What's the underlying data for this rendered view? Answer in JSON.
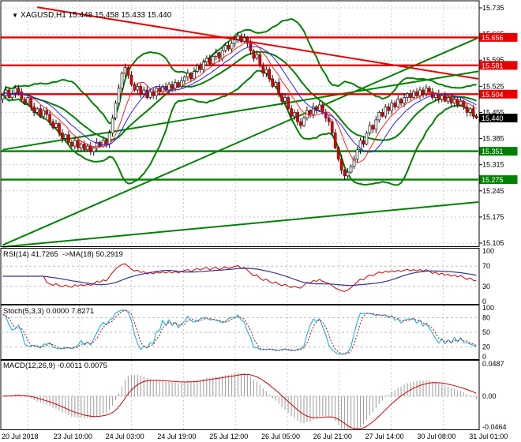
{
  "window": {
    "dropdown_icon": "▼",
    "title": "XAGUSD,H1",
    "ohlc": "15.448 15.458 15.433 15.440"
  },
  "colors": {
    "resistance": "#e80000",
    "support": "#008000",
    "current": "#000000",
    "bull": "#ffffff",
    "bear": "#dd0000",
    "candle_border": "#111111",
    "grid": "#c9c9c9",
    "band": "#008000",
    "ma_fast": "#ff2020",
    "ma_slow": "#2020ff",
    "rsi_main": "#cc0000",
    "rsi_ma": "#333399",
    "stoch_k": "#00b0d8",
    "stoch_d": "#cc0000",
    "macd_hist": "#9a9a9a",
    "macd_signal": "#cc0000",
    "axis_text": "#000000"
  },
  "chart_data": {
    "type": "candlestick",
    "title": "XAGUSD,H1",
    "ohlc_display": {
      "open": "15.448",
      "high": "15.458",
      "low": "15.433",
      "close": "15.440"
    },
    "price_axis": {
      "max": 15.735,
      "min": 15.105,
      "ticks": [
        15.735,
        15.665,
        15.595,
        15.525,
        15.455,
        15.385,
        15.315,
        15.245,
        15.175,
        15.105
      ]
    },
    "time_axis": {
      "labels": [
        "20 Jul 2018",
        "23 Jul 10:00",
        "24 Jul 03:00",
        "24 Jul 19:00",
        "25 Jul 12:00",
        "26 Jul 05:00",
        "26 Jul 21:00",
        "27 Jul 14:00",
        "30 Jul 08:00",
        "31 Jul 01:00"
      ]
    },
    "series": {
      "closes": [
        15.5,
        15.515,
        15.495,
        15.505,
        15.52,
        15.51,
        15.49,
        15.48,
        15.495,
        15.47,
        15.455,
        15.465,
        15.445,
        15.46,
        15.45,
        15.43,
        15.415,
        15.425,
        15.4,
        15.385,
        15.395,
        15.375,
        15.365,
        15.38,
        15.36,
        15.37,
        15.355,
        15.365,
        15.35,
        15.36,
        15.375,
        15.365,
        15.38,
        15.37,
        15.4,
        15.44,
        15.48,
        15.52,
        15.56,
        15.575,
        15.555,
        15.53,
        15.515,
        15.525,
        15.505,
        15.515,
        15.495,
        15.51,
        15.5,
        15.52,
        15.51,
        15.525,
        15.515,
        15.53,
        15.52,
        15.535,
        15.525,
        15.54,
        15.55,
        15.56,
        15.545,
        15.565,
        15.58,
        15.57,
        15.59,
        15.6,
        15.585,
        15.605,
        15.615,
        15.6,
        15.62,
        15.635,
        15.625,
        15.64,
        15.65,
        15.66,
        15.645,
        15.655,
        15.64,
        15.62,
        15.6,
        15.61,
        15.58,
        15.56,
        15.57,
        15.545,
        15.525,
        15.535,
        15.505,
        15.485,
        15.495,
        15.465,
        15.445,
        15.455,
        15.43,
        15.42,
        15.44,
        15.46,
        15.45,
        15.47,
        15.46,
        15.475,
        15.455,
        15.44,
        15.43,
        15.4,
        15.36,
        15.33,
        15.3,
        15.285,
        15.295,
        15.31,
        15.33,
        15.355,
        15.38,
        15.37,
        15.4,
        15.42,
        15.41,
        15.435,
        15.455,
        15.445,
        15.47,
        15.46,
        15.48,
        15.47,
        15.49,
        15.48,
        15.495,
        15.505,
        15.495,
        15.51,
        15.5,
        15.515,
        15.505,
        15.52,
        15.51,
        15.495,
        15.505,
        15.49,
        15.5,
        15.485,
        15.495,
        15.48,
        15.49,
        15.475,
        15.485,
        15.47,
        15.455,
        15.465,
        15.445,
        15.44
      ]
    },
    "levels": {
      "resistance": [
        15.656,
        15.581,
        15.504
      ],
      "support": [
        15.351,
        15.275
      ],
      "current_price": 15.44,
      "current_price_label": "15.440",
      "resistance_labels": [
        "15.656",
        "15.581",
        "15.504"
      ],
      "support_labels": [
        "15.351",
        "15.275"
      ]
    },
    "trendlines": [
      {
        "color": "resistance",
        "from_bar": 11,
        "from_price": 15.737,
        "to_bar": 152,
        "to_price": 15.545
      },
      {
        "color": "support",
        "from_bar": 0,
        "from_price": 15.1,
        "to_bar": 152,
        "to_price": 15.655
      },
      {
        "color": "support",
        "from_bar": 0,
        "from_price": 15.355,
        "to_bar": 152,
        "to_price": 15.565
      },
      {
        "color": "support",
        "from_bar": 0,
        "from_price": 15.095,
        "to_bar": 152,
        "to_price": 15.215
      }
    ],
    "bollinger": {
      "period": 20,
      "deviation": 2
    },
    "ma_ribbon": [
      {
        "period": 8,
        "color": "ma_fast"
      },
      {
        "period": 13,
        "color": "ma_slow"
      }
    ],
    "indicators": {
      "rsi": {
        "label": "RSI(14) 41.7265  ->MA(18) 50.2919",
        "period": 14,
        "ma_period": 18,
        "scale_labels": [
          "100",
          "70",
          "30",
          "0"
        ],
        "scale_values": [
          100,
          70,
          30,
          0
        ],
        "level_lines": [
          70,
          30
        ],
        "range": [
          0,
          100
        ]
      },
      "stoch": {
        "label": "Stoch(5,3,3) 0.0000 7.8271",
        "k": 5,
        "slowing": 3,
        "d": 3,
        "scale_labels": [
          "100",
          "80",
          "50",
          "20",
          "0"
        ],
        "scale_values": [
          100,
          80,
          50,
          20,
          0
        ],
        "level_lines": [
          80,
          50,
          20
        ],
        "range": [
          0,
          100
        ]
      },
      "macd": {
        "label": "MACD(12,26,9) -0.0011 0.0075",
        "fast": 12,
        "slow": 26,
        "signal": 9,
        "scale_labels": [
          "0.0487",
          "0.00",
          "-0.0464"
        ],
        "scale_values": [
          0.0487,
          0.0,
          -0.0464
        ],
        "range": [
          -0.0464,
          0.0487
        ]
      }
    }
  }
}
